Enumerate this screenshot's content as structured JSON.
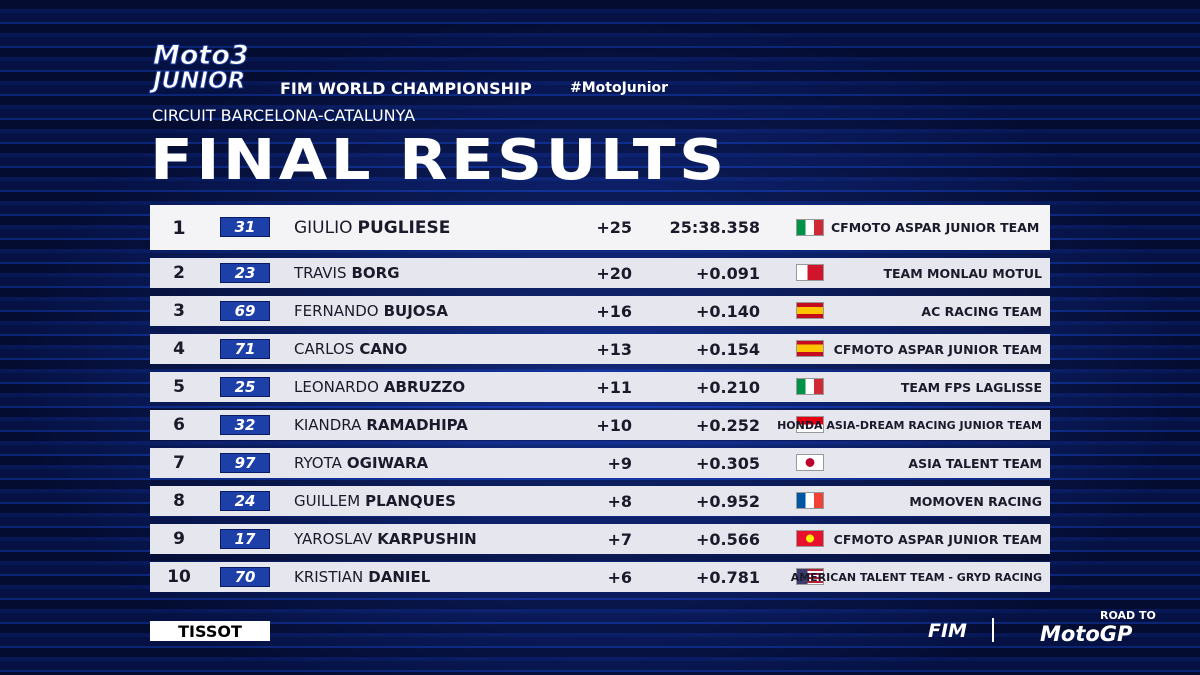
{
  "header": {
    "logo_top": "Moto3",
    "logo_bottom": "JUNIOR",
    "championship": "FIM WORLD CHAMPIONSHIP",
    "hashtag": "#MotoJunior",
    "circuit": "CIRCUIT BARCELONA-CATALUNYA",
    "title": "FINAL RESULTS"
  },
  "table": {
    "rows": [
      [
        "1",
        "31",
        "GIULIO",
        "PUGLIESE",
        "+25",
        "25:38.358",
        "CFMOTO ASPAR JUNIOR TEAM"
      ],
      [
        "2",
        "23",
        "TRAVIS",
        "BORG",
        "+20",
        "+0.091",
        "TEAM MONLAU MOTUL"
      ],
      [
        "3",
        "69",
        "FERNANDO",
        "BUJOSA",
        "+16",
        "+0.140",
        "AC RACING TEAM"
      ],
      [
        "4",
        "71",
        "CARLOS",
        "CANO",
        "+13",
        "+0.154",
        "CFMOTO ASPAR JUNIOR TEAM"
      ],
      [
        "5",
        "25",
        "LEONARDO",
        "ABRUZZO",
        "+11",
        "+0.210",
        "TEAM FPS LAGLISSE"
      ],
      [
        "6",
        "32",
        "KIANDRA",
        "RAMADHIPA",
        "+10",
        "+0.252",
        "HONDA ASIA-DREAM RACING JUNIOR TEAM"
      ],
      [
        "7",
        "97",
        "RYOTA",
        "OGIWARA",
        "+9",
        "+0.305",
        "ASIA TALENT TEAM"
      ],
      [
        "8",
        "24",
        "GUILLEM",
        "PLANQUES",
        "+8",
        "+0.952",
        "MOMOVEN RACING"
      ],
      [
        "9",
        "17",
        "YAROSLAV",
        "KARPUSHIN",
        "+7",
        "+0.566",
        "CFMOTO ASPAR JUNIOR TEAM"
      ],
      [
        "10",
        "70",
        "KRISTIAN",
        "DANIEL",
        "+6",
        "+0.781",
        "AMERICAN TALENT TEAM - GRYD RACING"
      ]
    ]
  },
  "footer": {
    "sponsor": "TISSOT",
    "fim": "FIM",
    "road": "ROAD TO",
    "motogp": "MotoGP"
  }
}
